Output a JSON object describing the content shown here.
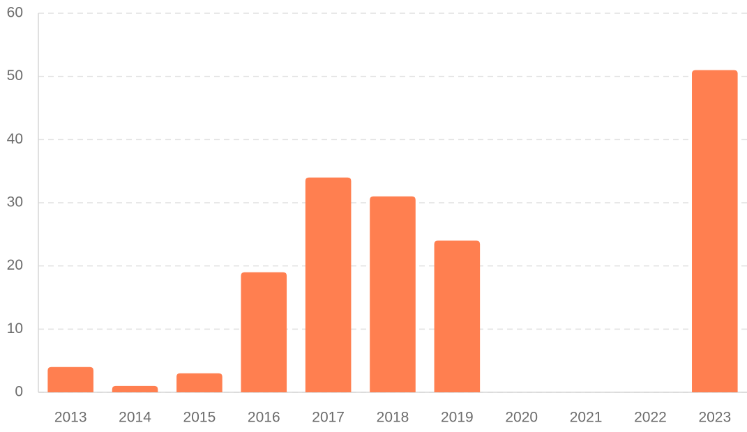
{
  "chart_data": {
    "type": "bar",
    "categories": [
      "2013",
      "2014",
      "2015",
      "2016",
      "2017",
      "2018",
      "2019",
      "2020",
      "2021",
      "2022",
      "2023"
    ],
    "values": [
      4,
      1,
      3,
      19,
      34,
      31,
      24,
      0,
      0,
      0,
      51
    ],
    "color": "#ff7f50",
    "ylim": [
      0,
      60
    ],
    "yticks": [
      0,
      10,
      20,
      30,
      40,
      50,
      60
    ],
    "grid": true
  }
}
